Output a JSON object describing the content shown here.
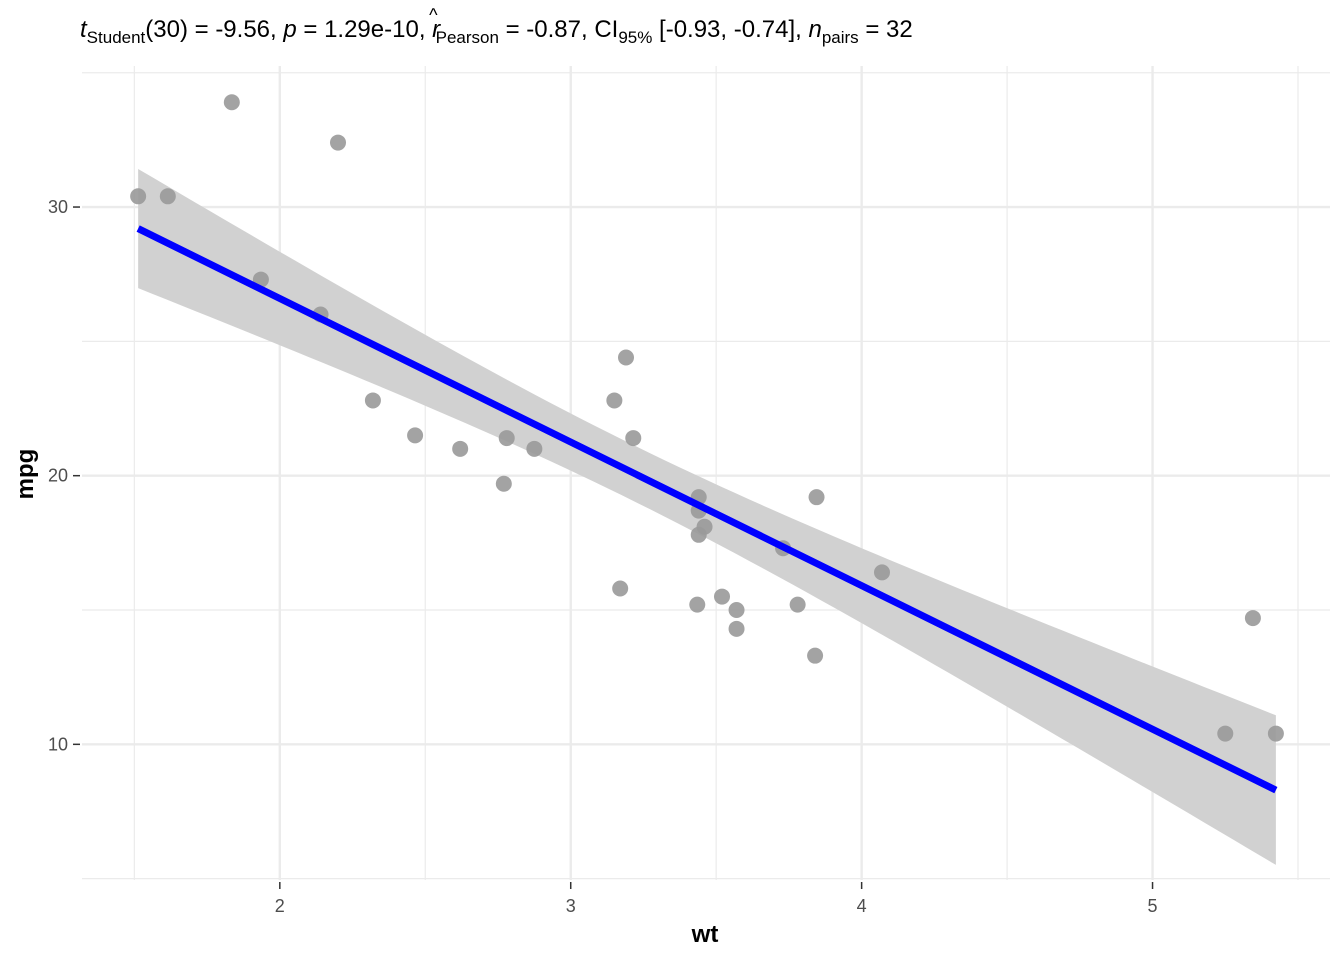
{
  "subtitle": {
    "t_symbol": "t",
    "t_sub": "Student",
    "t_text": "(30) = -9.56, ",
    "p_symbol": "p",
    "p_text": " = 1.29e-10, ",
    "r_symbol": "r",
    "r_hat": "^",
    "r_sub": "Pearson",
    "r_text": " = -0.87, CI",
    "ci_sub": "95%",
    "ci_text": " [-0.93, -0.74], ",
    "n_symbol": "n",
    "n_sub": "pairs",
    "n_text": " = 32"
  },
  "chart_data": {
    "type": "scatter",
    "title": "",
    "subtitle": "t_Student(30) = -9.56, p = 1.29e-10, r̂_Pearson = -0.87, CI_95% [-0.93, -0.74], n_pairs = 32",
    "xlabel": "wt",
    "ylabel": "mpg",
    "xlim": [
      1.32,
      5.61
    ],
    "ylim": [
      4.95,
      35.25
    ],
    "x_ticks": [
      2,
      3,
      4,
      5
    ],
    "x_tick_labels": [
      "2",
      "3",
      "4",
      "5"
    ],
    "x_minor_ticks": [
      1.5,
      2.5,
      3.5,
      4.5,
      5.5
    ],
    "y_ticks": [
      10,
      20,
      30
    ],
    "y_tick_labels": [
      "10",
      "20",
      "30"
    ],
    "y_minor_ticks": [
      5,
      15,
      25,
      35
    ],
    "grid": true,
    "legend": "none",
    "points": [
      {
        "x": 2.62,
        "y": 21.0
      },
      {
        "x": 2.875,
        "y": 21.0
      },
      {
        "x": 2.32,
        "y": 22.8
      },
      {
        "x": 3.215,
        "y": 21.4
      },
      {
        "x": 3.44,
        "y": 18.7
      },
      {
        "x": 3.46,
        "y": 18.1
      },
      {
        "x": 3.57,
        "y": 14.3
      },
      {
        "x": 3.19,
        "y": 24.4
      },
      {
        "x": 3.15,
        "y": 22.8
      },
      {
        "x": 3.44,
        "y": 19.2
      },
      {
        "x": 3.44,
        "y": 17.8
      },
      {
        "x": 4.07,
        "y": 16.4
      },
      {
        "x": 3.73,
        "y": 17.3
      },
      {
        "x": 3.78,
        "y": 15.2
      },
      {
        "x": 5.25,
        "y": 10.4
      },
      {
        "x": 5.424,
        "y": 10.4
      },
      {
        "x": 5.345,
        "y": 14.7
      },
      {
        "x": 2.2,
        "y": 32.4
      },
      {
        "x": 1.615,
        "y": 30.4
      },
      {
        "x": 1.835,
        "y": 33.9
      },
      {
        "x": 2.465,
        "y": 21.5
      },
      {
        "x": 3.52,
        "y": 15.5
      },
      {
        "x": 3.435,
        "y": 15.2
      },
      {
        "x": 3.84,
        "y": 13.3
      },
      {
        "x": 3.845,
        "y": 19.2
      },
      {
        "x": 1.935,
        "y": 27.3
      },
      {
        "x": 2.14,
        "y": 26.0
      },
      {
        "x": 1.513,
        "y": 30.4
      },
      {
        "x": 3.17,
        "y": 15.8
      },
      {
        "x": 2.77,
        "y": 19.7
      },
      {
        "x": 3.57,
        "y": 15.0
      },
      {
        "x": 2.78,
        "y": 21.4
      }
    ],
    "fit_line": {
      "intercept": 37.285,
      "slope": -5.3445,
      "x_range": [
        1.513,
        5.424
      ]
    },
    "confidence_band": {
      "level": "95%",
      "x": [
        1.513,
        3.2,
        5.424
      ],
      "lower": [
        26.96,
        19.26,
        5.58
      ],
      "upper": [
        31.47,
        21.34,
        11.05
      ]
    },
    "colors": {
      "points": "#999999",
      "fit_line": "#0000ff",
      "band": "#d1d1d1",
      "grid": "#ebebeb",
      "ticks": "#333333"
    }
  }
}
